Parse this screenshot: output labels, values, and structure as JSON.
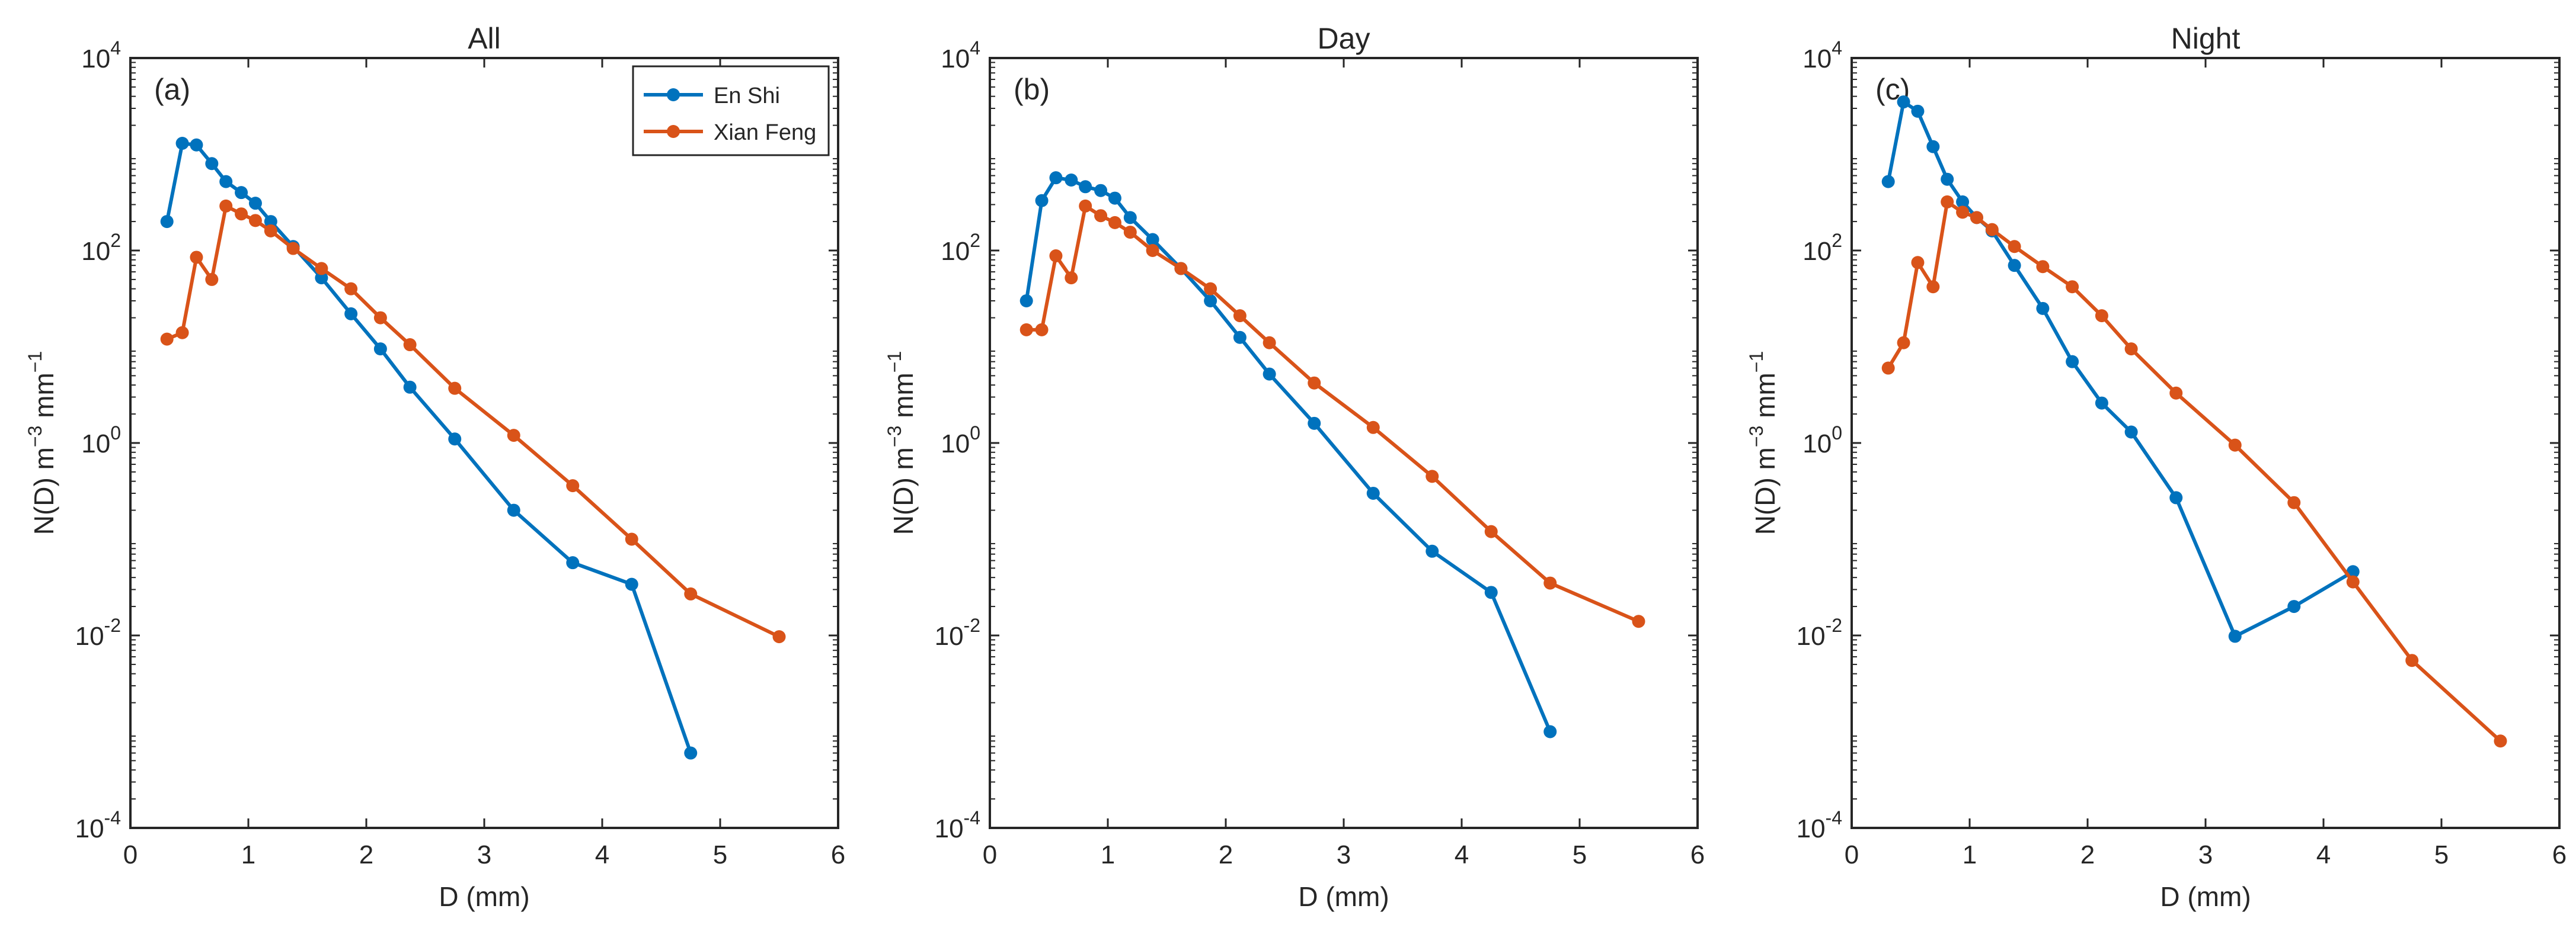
{
  "figure": {
    "colors": {
      "en_shi": "#0072BD",
      "xian_feng": "#D95319",
      "axis": "#262626"
    },
    "legend": {
      "placement": "top-right (panel a)",
      "entries": [
        "En Shi",
        "Xian Feng"
      ]
    }
  },
  "chart_data": [
    {
      "type": "line",
      "title": "All",
      "panel_label": "(a)",
      "xlabel": "D (mm)",
      "ylabel": "N(D)  m^-3 mm^-1",
      "yscale": "log",
      "xlim": [
        0,
        6
      ],
      "ylim": [
        0.0001,
        10000
      ],
      "xticks": [
        0,
        1,
        2,
        3,
        4,
        5,
        6
      ],
      "yticks": [
        0.0001,
        0.01,
        1,
        100,
        10000
      ],
      "ytick_exponents": [
        "-4",
        "-2",
        "0",
        "2",
        "4"
      ],
      "show_legend": true,
      "series": [
        {
          "name": "En Shi",
          "x": [
            0.31,
            0.44,
            0.56,
            0.69,
            0.81,
            0.94,
            1.06,
            1.19,
            1.38,
            1.62,
            1.87,
            2.12,
            2.37,
            2.75,
            3.25,
            3.75,
            4.25,
            4.75
          ],
          "y": [
            200,
            1300,
            1250,
            800,
            520,
            400,
            310,
            200,
            110,
            52,
            22,
            9.5,
            3.8,
            1.1,
            0.2,
            0.057,
            0.034,
            0.0006
          ]
        },
        {
          "name": "Xian Feng",
          "x": [
            0.31,
            0.44,
            0.56,
            0.69,
            0.81,
            0.94,
            1.06,
            1.19,
            1.38,
            1.62,
            1.87,
            2.12,
            2.37,
            2.75,
            3.25,
            3.75,
            4.25,
            4.75,
            5.5
          ],
          "y": [
            12,
            14,
            85,
            50,
            290,
            240,
            205,
            160,
            105,
            65,
            40,
            20,
            10.5,
            3.7,
            1.2,
            0.36,
            0.1,
            0.027,
            0.0097
          ]
        }
      ]
    },
    {
      "type": "line",
      "title": "Day",
      "panel_label": "(b)",
      "xlabel": "D (mm)",
      "ylabel": "N(D)  m^-3 mm^-1",
      "yscale": "log",
      "xlim": [
        0,
        6
      ],
      "ylim": [
        0.0001,
        10000
      ],
      "xticks": [
        0,
        1,
        2,
        3,
        4,
        5,
        6
      ],
      "yticks": [
        0.0001,
        0.01,
        1,
        100,
        10000
      ],
      "ytick_exponents": [
        "-4",
        "-2",
        "0",
        "2",
        "4"
      ],
      "show_legend": false,
      "series": [
        {
          "name": "En Shi",
          "x": [
            0.31,
            0.44,
            0.56,
            0.69,
            0.81,
            0.94,
            1.06,
            1.19,
            1.38,
            1.62,
            1.87,
            2.12,
            2.37,
            2.75,
            3.25,
            3.75,
            4.25,
            4.75
          ],
          "y": [
            30,
            330,
            570,
            540,
            460,
            420,
            350,
            220,
            130,
            65,
            30,
            12.5,
            5.2,
            1.6,
            0.3,
            0.075,
            0.028,
            0.001
          ]
        },
        {
          "name": "Xian Feng",
          "x": [
            0.31,
            0.44,
            0.56,
            0.69,
            0.81,
            0.94,
            1.06,
            1.19,
            1.38,
            1.62,
            1.87,
            2.12,
            2.37,
            2.75,
            3.25,
            3.75,
            4.25,
            4.75,
            5.5
          ],
          "y": [
            15,
            15,
            88,
            52,
            290,
            230,
            195,
            155,
            100,
            65,
            40,
            21,
            11,
            4.2,
            1.45,
            0.45,
            0.12,
            0.035,
            0.014
          ]
        }
      ]
    },
    {
      "type": "line",
      "title": "Night",
      "panel_label": "(c)",
      "xlabel": "D (mm)",
      "ylabel": "N(D)  m^-3 mm^-1",
      "yscale": "log",
      "xlim": [
        0,
        6
      ],
      "ylim": [
        0.0001,
        10000
      ],
      "xticks": [
        0,
        1,
        2,
        3,
        4,
        5,
        6
      ],
      "yticks": [
        0.0001,
        0.01,
        1,
        100,
        10000
      ],
      "ytick_exponents": [
        "-4",
        "-2",
        "0",
        "2",
        "4"
      ],
      "show_legend": false,
      "series": [
        {
          "name": "En Shi",
          "x": [
            0.31,
            0.44,
            0.56,
            0.69,
            0.81,
            0.94,
            1.06,
            1.19,
            1.38,
            1.62,
            1.87,
            2.12,
            2.37,
            2.75,
            3.25,
            3.75,
            4.25
          ],
          "y": [
            520,
            3500,
            2800,
            1200,
            550,
            320,
            220,
            160,
            70,
            25,
            7.0,
            2.6,
            1.3,
            0.27,
            0.0098,
            0.02,
            0.046
          ]
        },
        {
          "name": "Xian Feng",
          "x": [
            0.31,
            0.44,
            0.56,
            0.69,
            0.81,
            0.94,
            1.06,
            1.19,
            1.38,
            1.62,
            1.87,
            2.12,
            2.37,
            2.75,
            3.25,
            3.75,
            4.25,
            4.75,
            5.5
          ],
          "y": [
            6,
            11,
            75,
            42,
            320,
            250,
            220,
            165,
            110,
            68,
            42,
            21,
            9.5,
            3.3,
            0.95,
            0.24,
            0.036,
            0.0055,
            0.0008
          ]
        }
      ]
    }
  ]
}
